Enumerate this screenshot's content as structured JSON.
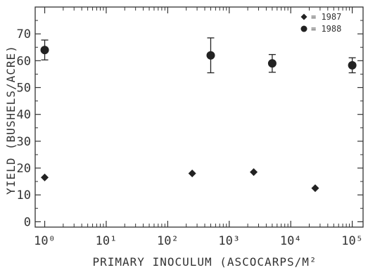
{
  "chart_data": {
    "type": "scatter",
    "title": "",
    "xlabel": "PRIMARY INOCULUM (ASCOCARPS/M²",
    "ylabel": "YIELD (BUSHELS/ACRE)",
    "x_scale": "log",
    "xlim": [
      0.7,
      150000
    ],
    "ylim": [
      -2,
      80
    ],
    "x_ticks": [
      {
        "value": 1,
        "label": "10⁰"
      },
      {
        "value": 10,
        "label": "10¹"
      },
      {
        "value": 100,
        "label": "10²"
      },
      {
        "value": 1000,
        "label": "10³"
      },
      {
        "value": 10000,
        "label": "10⁴"
      },
      {
        "value": 100000,
        "label": "10⁵"
      }
    ],
    "y_ticks": [
      0,
      10,
      20,
      30,
      40,
      50,
      60,
      70
    ],
    "grid": false,
    "legend_position": "top-right",
    "series": [
      {
        "name": "= 1987",
        "marker": "diamond",
        "color": "#222222",
        "points": [
          {
            "x": 1,
            "y": 16.5
          },
          {
            "x": 250,
            "y": 18
          },
          {
            "x": 2500,
            "y": 18.5
          },
          {
            "x": 25000,
            "y": 12.5
          }
        ]
      },
      {
        "name": "= 1988",
        "marker": "circle",
        "color": "#222222",
        "points": [
          {
            "x": 1,
            "y": 64,
            "err": 3.7
          },
          {
            "x": 500,
            "y": 62,
            "err": 6.5
          },
          {
            "x": 5000,
            "y": 59,
            "err": 3.3
          },
          {
            "x": 100000,
            "y": 58.3,
            "err": 2.8
          }
        ]
      }
    ]
  }
}
